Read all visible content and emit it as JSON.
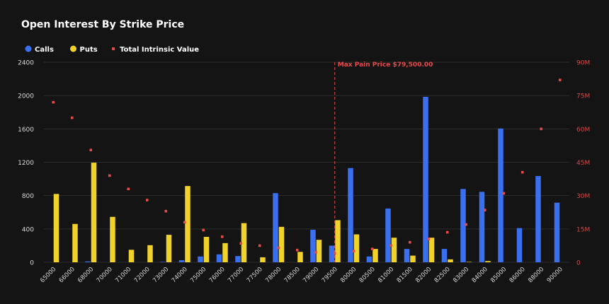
{
  "chart_data": {
    "type": "bar",
    "title": "Open Interest By Strike Price",
    "legend": {
      "placement": "top-left",
      "items": [
        {
          "label": "Calls",
          "shape": "circle",
          "color": "#3a6ff0"
        },
        {
          "label": "Puts",
          "shape": "circle",
          "color": "#f0d22a"
        },
        {
          "label": "Total Intrinsic Value",
          "shape": "square",
          "color": "#e84a4a"
        }
      ]
    },
    "categories": [
      "65000",
      "66000",
      "68000",
      "70000",
      "71000",
      "72000",
      "73000",
      "74000",
      "75000",
      "76000",
      "77000",
      "77500",
      "78000",
      "78500",
      "79000",
      "79500",
      "80000",
      "80500",
      "81000",
      "81500",
      "82000",
      "82500",
      "83000",
      "84000",
      "85000",
      "86000",
      "88000",
      "90000"
    ],
    "series": [
      {
        "name": "Calls",
        "type": "bar",
        "axis": "left",
        "color": "#3a6ff0",
        "values": [
          0,
          0,
          10,
          0,
          0,
          0,
          5,
          25,
          70,
          95,
          75,
          0,
          830,
          0,
          390,
          200,
          1130,
          70,
          645,
          160,
          1985,
          160,
          880,
          845,
          1605,
          410,
          1035,
          715
        ]
      },
      {
        "name": "Puts",
        "type": "bar",
        "axis": "left",
        "color": "#f0d22a",
        "values": [
          820,
          460,
          1195,
          545,
          150,
          205,
          330,
          915,
          305,
          230,
          470,
          60,
          425,
          125,
          270,
          505,
          335,
          160,
          295,
          80,
          295,
          35,
          5,
          15,
          0,
          0,
          0,
          0
        ]
      },
      {
        "name": "Total Intrinsic Value",
        "type": "scatter",
        "axis": "right",
        "color": "#e84a4a",
        "values": [
          72000000,
          65000000,
          50500000,
          39000000,
          33000000,
          28000000,
          23000000,
          18000000,
          14500000,
          11500000,
          8500000,
          7500000,
          6500000,
          5500000,
          4500000,
          4000000,
          5000000,
          6000000,
          7500000,
          9000000,
          10500000,
          13500000,
          17000000,
          23500000,
          31000000,
          40500000,
          60000000,
          82000000
        ]
      }
    ],
    "y_left": {
      "ylim": [
        0,
        2400
      ],
      "ticks": [
        "0",
        "400",
        "800",
        "1200",
        "1600",
        "2000",
        "2400"
      ]
    },
    "y_right": {
      "ylim": [
        0,
        90000000
      ],
      "ticks": [
        "0",
        "15M",
        "30M",
        "45M",
        "60M",
        "75M",
        "90M"
      ],
      "color": "#d94848"
    },
    "grid": true,
    "annotation": {
      "label": "Max Pain Price $79,500.00",
      "category": "79500",
      "color": "#e84a4a"
    },
    "colors": {
      "background": "#141414",
      "grid": "#2c2c2c",
      "axis_text": "#d8d8d8"
    }
  }
}
